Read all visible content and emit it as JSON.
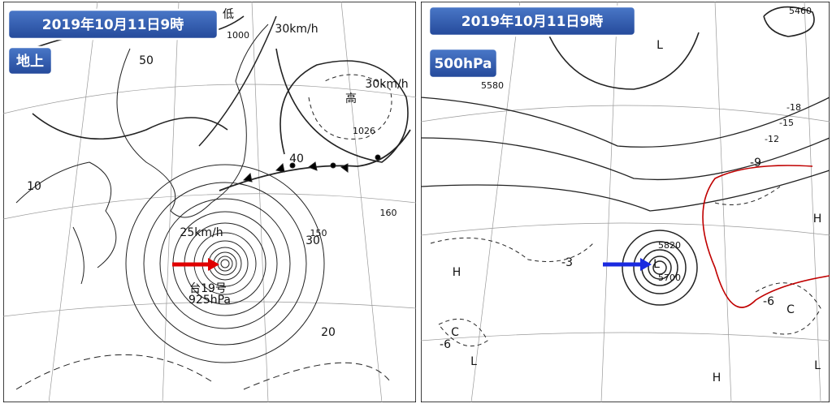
{
  "panels": [
    {
      "title": "2019年10月11日9時",
      "level": "地上",
      "labels": [
        "低",
        "1000",
        "30km/h",
        "高",
        "30km/h",
        "1026",
        "25km/h",
        "台19号",
        "925hPa",
        "50",
        "40",
        "30",
        "20",
        "10",
        "150",
        "160"
      ]
    },
    {
      "title": "2019年10月11日9時",
      "level": "500hPa",
      "labels": [
        "5460",
        "5580",
        "5820",
        "5700",
        "L",
        "L",
        "L",
        "L",
        "H",
        "H",
        "H",
        "C",
        "C",
        "-18",
        "-15",
        "-12",
        "-9",
        "-6",
        "-3",
        "-6"
      ]
    }
  ]
}
